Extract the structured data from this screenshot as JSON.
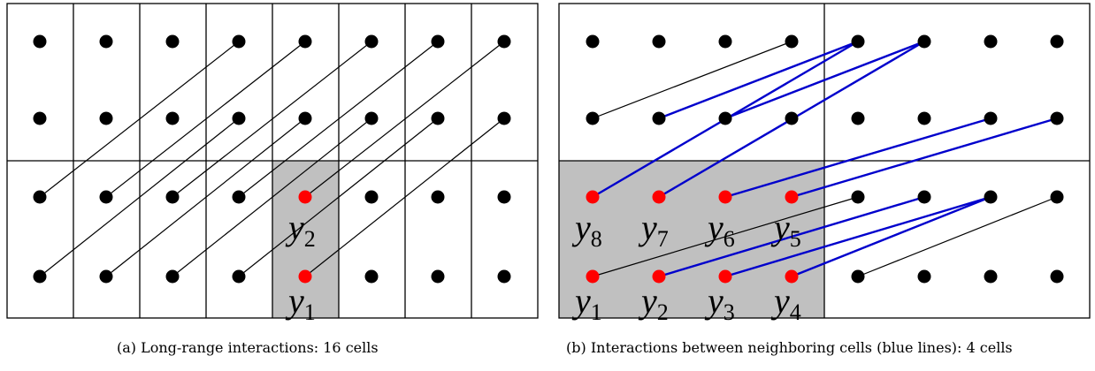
{
  "panel_a": {
    "caption": "(a) Long-range interactions: 16 cells",
    "highlight_labels": [
      {
        "base": "y",
        "sub": "2"
      },
      {
        "base": "y",
        "sub": "1"
      }
    ]
  },
  "panel_b": {
    "caption": "(b) Interactions between neighboring cells (blue lines): 4 cells",
    "top_labels": [
      {
        "base": "y",
        "sub": "8"
      },
      {
        "base": "y",
        "sub": "7"
      },
      {
        "base": "y",
        "sub": "6"
      },
      {
        "base": "y",
        "sub": "5"
      }
    ],
    "bottom_labels": [
      {
        "base": "y",
        "sub": "1"
      },
      {
        "base": "y",
        "sub": "2"
      },
      {
        "base": "y",
        "sub": "3"
      },
      {
        "base": "y",
        "sub": "4"
      }
    ]
  },
  "colors": {
    "dot": "#000000",
    "highlight_dot": "#ff0000",
    "neighbor_line": "#0000cc",
    "shade": "#c0c0c0",
    "line": "#000000"
  }
}
